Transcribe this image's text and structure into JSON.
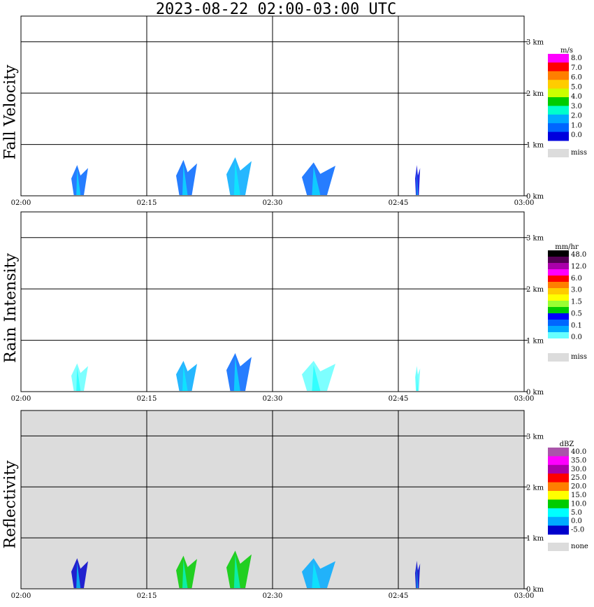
{
  "title": "2023-08-22   02:00-03:00 UTC",
  "colors": {
    "frame": "#000000",
    "missing": "#dcdcdc",
    "background": "#ffffff"
  },
  "chart_data": [
    {
      "type": "heatmap",
      "ylabel": "Fall Velocity",
      "x_ticks": [
        "02:00",
        "02:15",
        "02:30",
        "02:45",
        "03:00"
      ],
      "y_ticks": [
        "0 km",
        "1 km",
        "2 km",
        "3 km"
      ],
      "xlim_minutes": [
        0,
        60
      ],
      "ylim_km": [
        0,
        3.5
      ],
      "grid": true,
      "background": "white",
      "colorbar": {
        "unit": "m/s",
        "labels": [
          "8.0",
          "7.0",
          "6.0",
          "5.0",
          "4.0",
          "3.0",
          "2.0",
          "1.0",
          "0.0",
          "miss"
        ],
        "colors": [
          "#ff00ff",
          "#ff0000",
          "#ff7f00",
          "#ffcc00",
          "#ccff00",
          "#00cc00",
          "#00ffcc",
          "#00aaff",
          "#0066ff",
          "#0000dd"
        ],
        "missing_color": "#dcdcdc"
      },
      "echoes": [
        {
          "t_min": 6.0,
          "t_max": 8.0,
          "h_max_km": 0.6,
          "color": "#0066ff"
        },
        {
          "t_min": 18.5,
          "t_max": 21.0,
          "h_max_km": 0.7,
          "color": "#0066ff"
        },
        {
          "t_min": 24.5,
          "t_max": 27.5,
          "h_max_km": 0.75,
          "color": "#00aaff"
        },
        {
          "t_min": 33.5,
          "t_max": 37.5,
          "h_max_km": 0.65,
          "color": "#0066ff"
        },
        {
          "t_min": 47.0,
          "t_max": 47.6,
          "h_max_km": 0.6,
          "color": "#0000dd"
        }
      ]
    },
    {
      "type": "heatmap",
      "ylabel": "Rain Intensity",
      "x_ticks": [
        "02:00",
        "02:15",
        "02:30",
        "02:45",
        "03:00"
      ],
      "y_ticks": [
        "0 km",
        "1 km",
        "2 km",
        "3 km"
      ],
      "xlim_minutes": [
        0,
        60
      ],
      "ylim_km": [
        0,
        3.5
      ],
      "grid": true,
      "background": "white",
      "colorbar": {
        "unit": "mm/hr",
        "labels": [
          "48.0",
          "12.0",
          "6.0",
          "3.0",
          "1.5",
          "0.5",
          "0.1",
          "0.0",
          "miss"
        ],
        "colors": [
          "#000000",
          "#550055",
          "#aa00aa",
          "#ff00ff",
          "#ff0000",
          "#ff7f00",
          "#ffcc00",
          "#ffff00",
          "#99ff33",
          "#00cc00",
          "#0000ff",
          "#0066ff",
          "#00aaff",
          "#66ffff",
          "#ffffff"
        ],
        "missing_color": "#dcdcdc"
      },
      "echoes": [
        {
          "t_min": 6.0,
          "t_max": 8.0,
          "h_max_km": 0.55,
          "color": "#66ffff"
        },
        {
          "t_min": 18.5,
          "t_max": 21.0,
          "h_max_km": 0.6,
          "color": "#00aaff"
        },
        {
          "t_min": 24.5,
          "t_max": 27.5,
          "h_max_km": 0.75,
          "color": "#0066ff"
        },
        {
          "t_min": 33.5,
          "t_max": 37.5,
          "h_max_km": 0.6,
          "color": "#66ffff"
        },
        {
          "t_min": 47.0,
          "t_max": 47.6,
          "h_max_km": 0.5,
          "color": "#66ffff"
        }
      ]
    },
    {
      "type": "heatmap",
      "ylabel": "Reflectivity",
      "x_ticks": [
        "02:00",
        "02:15",
        "02:30",
        "02:45",
        "03:00"
      ],
      "y_ticks": [
        "0 km",
        "1 km",
        "2 km",
        "3 km"
      ],
      "xlim_minutes": [
        0,
        60
      ],
      "ylim_km": [
        0,
        3.5
      ],
      "grid": true,
      "background": "missing",
      "colorbar": {
        "unit": "dBZ",
        "labels": [
          "40.0",
          "35.0",
          "30.0",
          "25.0",
          "20.0",
          "15.0",
          "10.0",
          "5.0",
          "0.0",
          "-5.0",
          "none"
        ],
        "colors": [
          "#aa55aa",
          "#ff00ff",
          "#aa00aa",
          "#ff0000",
          "#ff7f00",
          "#ffff00",
          "#00cc00",
          "#00ffff",
          "#00aaff",
          "#0000cc"
        ],
        "missing_color": "#dcdcdc"
      },
      "echoes": [
        {
          "t_min": 6.0,
          "t_max": 8.0,
          "h_max_km": 0.6,
          "color": "#0000cc"
        },
        {
          "t_min": 18.5,
          "t_max": 21.0,
          "h_max_km": 0.65,
          "color": "#00cc00"
        },
        {
          "t_min": 24.5,
          "t_max": 27.5,
          "h_max_km": 0.75,
          "color": "#00cc00"
        },
        {
          "t_min": 33.5,
          "t_max": 37.5,
          "h_max_km": 0.6,
          "color": "#00aaff"
        },
        {
          "t_min": 47.0,
          "t_max": 47.6,
          "h_max_km": 0.55,
          "color": "#0000cc"
        }
      ]
    }
  ]
}
